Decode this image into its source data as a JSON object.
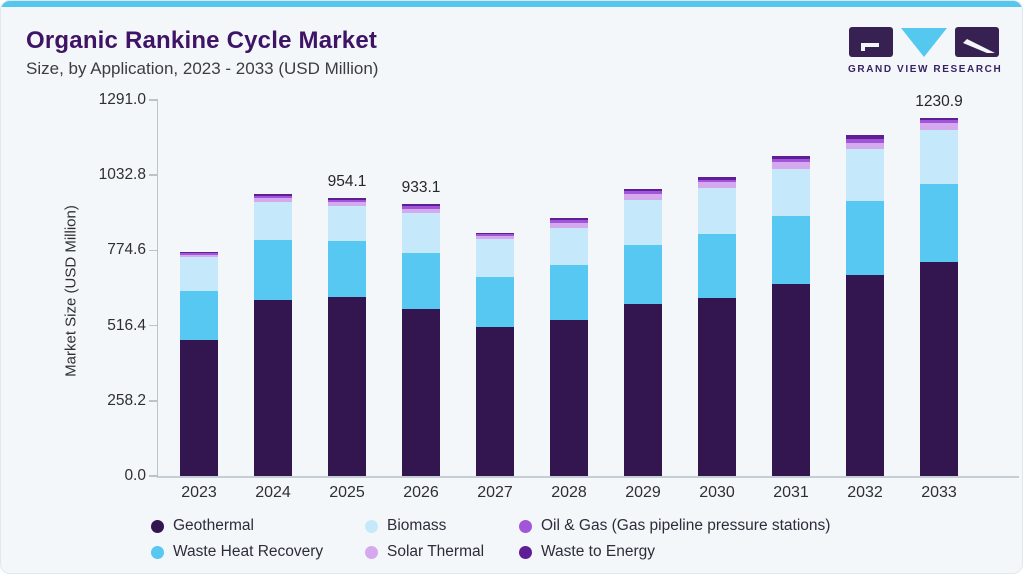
{
  "header": {
    "title": "Organic Rankine Cycle Market",
    "subtitle": "Size, by Application, 2023 - 2033 (USD Million)"
  },
  "logo": {
    "text": "GRAND VIEW RESEARCH",
    "icon": "gvr-logo-icon",
    "colors": {
      "purple": "#372153",
      "cyan": "#55c8f0"
    }
  },
  "chart_data": {
    "type": "bar",
    "stacked": true,
    "title": "Organic Rankine Cycle Market Size, by Application, 2023 - 2033 (USD Million)",
    "xlabel": "",
    "ylabel": "Market Size (USD Million)",
    "ylim": [
      0,
      1291.0
    ],
    "yticks": [
      0.0,
      258.2,
      516.4,
      774.6,
      1032.8,
      1291.0
    ],
    "grid": false,
    "legend_position": "bottom",
    "categories": [
      "2023",
      "2024",
      "2025",
      "2026",
      "2027",
      "2028",
      "2029",
      "2030",
      "2031",
      "2032",
      "2033"
    ],
    "series": [
      {
        "name": "Geothermal",
        "color": "#331550",
        "values": [
          468,
          605,
          614,
          575,
          510,
          537,
          592,
          612,
          658,
          691,
          734
        ]
      },
      {
        "name": "Waste Heat Recovery",
        "color": "#57c8f2",
        "values": [
          166,
          206,
          192,
          190,
          172,
          186,
          202,
          219,
          234,
          252,
          269
        ]
      },
      {
        "name": "Biomass",
        "color": "#c5e9fa",
        "values": [
          118,
          129,
          120,
          138,
          132,
          129,
          152,
          159,
          162,
          179,
          185
        ]
      },
      {
        "name": "Solar Thermal",
        "color": "#d5a9ee",
        "values": [
          7.5,
          14,
          14,
          14,
          10,
          18,
          22,
          18,
          24,
          22,
          24
        ]
      },
      {
        "name": "Oil & Gas (Gas pipeline pressure stations)",
        "color": "#a155d9",
        "values": [
          7,
          7,
          9,
          10,
          8,
          10,
          10,
          10,
          12,
          14,
          10
        ]
      },
      {
        "name": "Waste to Energy",
        "color": "#5e1f96",
        "values": [
          3.5,
          7,
          5.1,
          6.1,
          4,
          6,
          8,
          7,
          10,
          12,
          8.9
        ]
      }
    ],
    "bar_labels": {
      "2025": "954.1",
      "2026": "933.1",
      "2033": "1230.9"
    },
    "legend_rows": [
      [
        0,
        2,
        4
      ],
      [
        1,
        3,
        5
      ]
    ]
  }
}
